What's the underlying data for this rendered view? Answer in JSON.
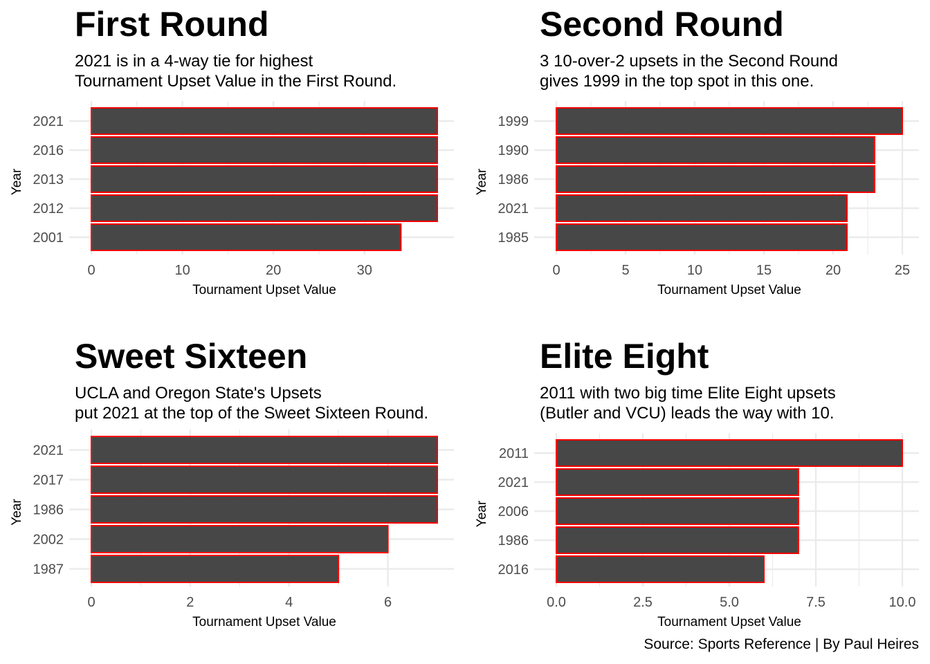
{
  "caption": "Source: Sports Reference | By Paul Heires",
  "style": {
    "bar_fill": "#474747",
    "bar_stroke": "#ff0000",
    "grid_color": "#ebebeb",
    "tick_color": "#4d4d4d"
  },
  "chart_data": [
    {
      "type": "bar",
      "orientation": "horizontal",
      "title": "First Round",
      "subtitle": "2021 is in a 4-way tie for highest\nTournament Upset Value in the First Round.",
      "xlabel": "Tournament Upset Value",
      "ylabel": "Year",
      "categories": [
        "2021",
        "2016",
        "2013",
        "2012",
        "2001"
      ],
      "values": [
        38,
        38,
        38,
        38,
        34
      ],
      "xticks": [
        "0",
        "10",
        "20",
        "30"
      ],
      "xtick_values": [
        0,
        10,
        20,
        30
      ],
      "xlim": [
        0,
        38
      ],
      "grid": true
    },
    {
      "type": "bar",
      "orientation": "horizontal",
      "title": "Second Round",
      "subtitle": "3 10-over-2 upsets in the Second Round\ngives 1999 in the top spot in this one.",
      "xlabel": "Tournament Upset Value",
      "ylabel": "Year",
      "categories": [
        "1999",
        "1990",
        "1986",
        "2021",
        "1985"
      ],
      "values": [
        25,
        23,
        23,
        21,
        21
      ],
      "xticks": [
        "0",
        "5",
        "10",
        "15",
        "20",
        "25"
      ],
      "xtick_values": [
        0,
        5,
        10,
        15,
        20,
        25
      ],
      "xlim": [
        0,
        25
      ],
      "grid": true
    },
    {
      "type": "bar",
      "orientation": "horizontal",
      "title": "Sweet Sixteen",
      "subtitle": "UCLA and Oregon State's Upsets\nput 2021 at the top of the Sweet Sixteen Round.",
      "xlabel": "Tournament Upset Value",
      "ylabel": "Year",
      "categories": [
        "2021",
        "2017",
        "1986",
        "2002",
        "1987"
      ],
      "values": [
        7,
        7,
        7,
        6,
        5
      ],
      "xticks": [
        "0",
        "2",
        "4",
        "6"
      ],
      "xtick_values": [
        0,
        2,
        4,
        6
      ],
      "xlim": [
        0,
        7
      ],
      "grid": true
    },
    {
      "type": "bar",
      "orientation": "horizontal",
      "title": "Elite Eight",
      "subtitle": "2011 with two big time Elite Eight upsets\n(Butler and VCU) leads the way with 10.",
      "xlabel": "Tournament Upset Value",
      "ylabel": "Year",
      "categories": [
        "2011",
        "2021",
        "2006",
        "1986",
        "2016"
      ],
      "values": [
        10,
        7,
        7,
        7,
        6
      ],
      "xticks": [
        "0.0",
        "2.5",
        "5.0",
        "7.5",
        "10.0"
      ],
      "xtick_values": [
        0,
        2.5,
        5,
        7.5,
        10
      ],
      "xlim": [
        0,
        10
      ],
      "grid": true
    }
  ]
}
